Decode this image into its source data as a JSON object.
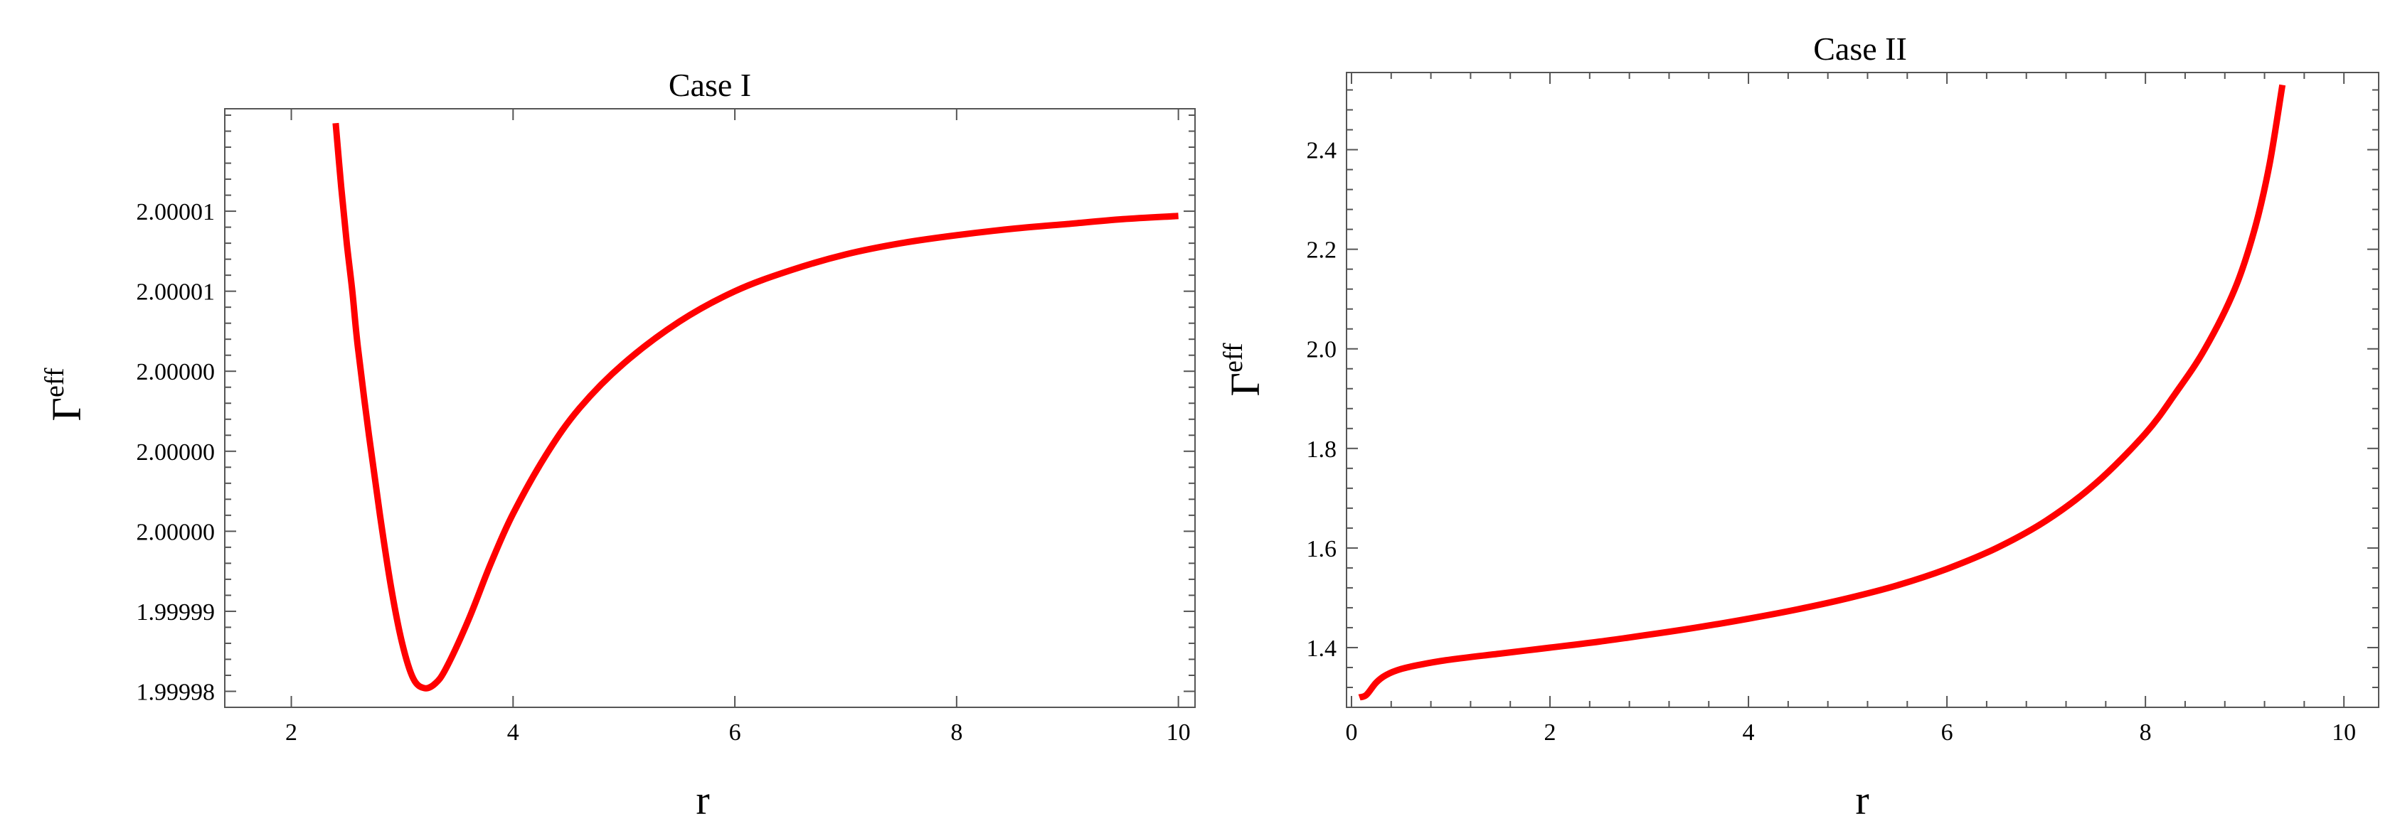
{
  "chart_data": [
    {
      "type": "line",
      "title": "Case I",
      "xlabel": "r",
      "ylabel": "Γ",
      "ylabel_superscript": "eff",
      "xlim": [
        1.4,
        10.15
      ],
      "ylim": [
        1.999979,
        2.0000164
      ],
      "x_ticks": [
        2,
        4,
        6,
        8,
        10
      ],
      "x_tick_labels": [
        "2",
        "4",
        "6",
        "8",
        "10"
      ],
      "y_ticks": [
        1.99998,
        1.999985,
        1.99999,
        1.999995,
        2.0,
        2.000005,
        2.00001
      ],
      "y_tick_labels": [
        "1.99998",
        "1.99999",
        "2.00000",
        "2.00000",
        "2.00000",
        "2.00001",
        "2.00001"
      ],
      "grid": false,
      "color": "#ff0000",
      "series": [
        {
          "x": [
            2.4,
            2.45,
            2.5,
            2.55,
            2.6,
            2.7,
            2.8,
            2.9,
            3.0,
            3.1,
            3.2,
            3.3,
            3.4,
            3.6,
            3.8,
            4.0,
            4.3,
            4.6,
            5.0,
            5.5,
            6.0,
            6.5,
            7.0,
            7.5,
            8.0,
            8.5,
            9.0,
            9.5,
            10.0
          ],
          "y": [
            2.0000155,
            2.0000115,
            2.000008,
            2.000005,
            2.0000015,
            1.999996,
            1.999991,
            1.9999865,
            1.999983,
            1.9999808,
            1.9999802,
            1.9999805,
            1.9999815,
            1.9999845,
            1.999988,
            1.9999911,
            1.9999948,
            1.9999977,
            2.0000005,
            2.0000031,
            2.000005,
            2.0000063,
            2.0000073,
            2.000008,
            2.0000085,
            2.0000089,
            2.0000092,
            2.0000095,
            2.0000097
          ]
        }
      ]
    },
    {
      "type": "line",
      "title": "Case II",
      "xlabel": "r",
      "ylabel": "Γ",
      "ylabel_superscript": "eff",
      "xlim": [
        -0.05,
        10.35
      ],
      "ylim": [
        1.28,
        2.555
      ],
      "x_ticks": [
        0,
        2,
        4,
        6,
        8,
        10
      ],
      "x_tick_labels": [
        "0",
        "2",
        "4",
        "6",
        "8",
        "10"
      ],
      "y_ticks": [
        1.4,
        1.6,
        1.8,
        2.0,
        2.2,
        2.4
      ],
      "y_tick_labels": [
        "1.4",
        "1.6",
        "1.8",
        "2.0",
        "2.2",
        "2.4"
      ],
      "grid": false,
      "color": "#ff0000",
      "series": [
        {
          "x": [
            0.08,
            0.15,
            0.25,
            0.35,
            0.5,
            0.7,
            1.0,
            1.5,
            2.0,
            2.5,
            3.0,
            3.5,
            4.0,
            4.5,
            5.0,
            5.5,
            6.0,
            6.5,
            7.0,
            7.5,
            8.0,
            8.3,
            8.6,
            8.9,
            9.1,
            9.25,
            9.38
          ],
          "y": [
            1.3,
            1.305,
            1.33,
            1.345,
            1.357,
            1.366,
            1.376,
            1.388,
            1.4,
            1.412,
            1.426,
            1.441,
            1.458,
            1.477,
            1.499,
            1.525,
            1.558,
            1.6,
            1.655,
            1.73,
            1.83,
            1.91,
            2.0,
            2.12,
            2.24,
            2.37,
            2.53
          ]
        }
      ]
    }
  ]
}
